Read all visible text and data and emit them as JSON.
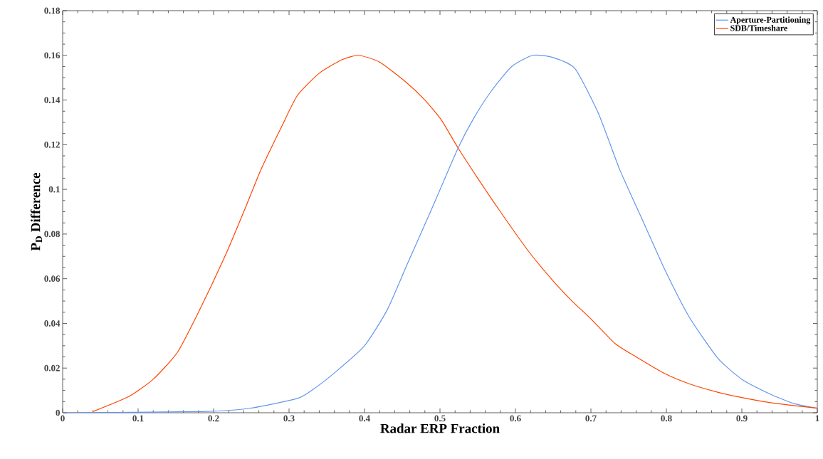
{
  "chart_data": {
    "type": "line",
    "xlabel": "Radar ERP Fraction",
    "ylabel": "P$_{D}$ Difference",
    "xlim": [
      0,
      1
    ],
    "ylim": [
      0,
      0.18
    ],
    "xticks": [
      0,
      0.1,
      0.2,
      0.3,
      0.4,
      0.5,
      0.6,
      0.7,
      0.8,
      0.9,
      1
    ],
    "yticks": [
      0,
      0.02,
      0.04,
      0.06,
      0.08,
      0.1,
      0.12,
      0.14,
      0.16,
      0.18
    ],
    "grid": false,
    "legend": "top right",
    "marker": "none",
    "line_style": "solid",
    "series": [
      {
        "name": "Aperture-Partitioning",
        "color": "#6495ed",
        "x": [
          0,
          0.185,
          0.248,
          0.311,
          0.33,
          0.36,
          0.4,
          0.43,
          0.456,
          0.49,
          0.524,
          0.545,
          0.568,
          0.595,
          0.623,
          0.65,
          0.679,
          0.71,
          0.738,
          0.77,
          0.798,
          0.83,
          0.868,
          0.9,
          0.938,
          0.97,
          1
        ],
        "values": [
          0,
          0.0005,
          0.002,
          0.0064,
          0.01,
          0.0178,
          0.03,
          0.046,
          0.066,
          0.092,
          0.1185,
          0.132,
          0.144,
          0.155,
          0.16,
          0.159,
          0.154,
          0.134,
          0.109,
          0.085,
          0.064,
          0.043,
          0.0245,
          0.015,
          0.0083,
          0.004,
          0.002
        ]
      },
      {
        "name": "SDB/Timeshare",
        "color": "#ff4500",
        "x": [
          0.04,
          0.088,
          0.12,
          0.152,
          0.18,
          0.215,
          0.24,
          0.263,
          0.29,
          0.311,
          0.34,
          0.37,
          0.392,
          0.42,
          0.455,
          0.48,
          0.502,
          0.524,
          0.549,
          0.58,
          0.618,
          0.65,
          0.675,
          0.7,
          0.732,
          0.76,
          0.798,
          0.83,
          0.868,
          0.9,
          0.938,
          1
        ],
        "values": [
          0.0005,
          0.0073,
          0.015,
          0.027,
          0.045,
          0.07,
          0.09,
          0.109,
          0.128,
          0.142,
          0.152,
          0.158,
          0.16,
          0.157,
          0.148,
          0.14,
          0.131,
          0.1185,
          0.1055,
          0.09,
          0.072,
          0.059,
          0.05,
          0.042,
          0.031,
          0.025,
          0.0175,
          0.013,
          0.0092,
          0.0068,
          0.0045,
          0.002
        ]
      }
    ]
  }
}
